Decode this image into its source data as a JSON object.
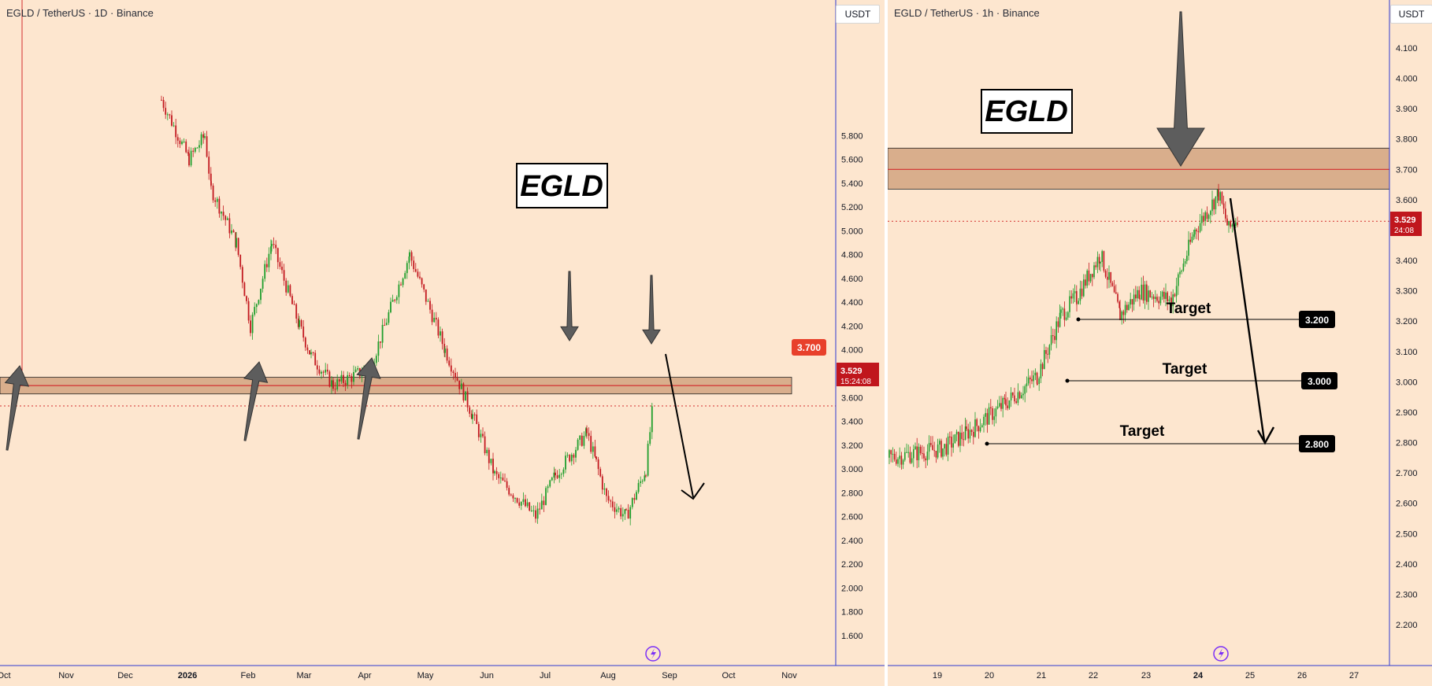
{
  "left_chart": {
    "symbol_label": "EGLD / TetherUS · 1D · Binance",
    "unit_label": "USDT",
    "watermark": "EGLD",
    "resistance_label": "3.700",
    "last_price": "3.529",
    "countdown": "15:24:08",
    "colors": {
      "zone": "#d9ae8c",
      "zone_line": "#d32f2f",
      "price_box": "#c0161d",
      "resistance_box": "#e8402b",
      "up": "#1f9e2c",
      "down": "#c2181f",
      "axis": "#2e3bd1"
    }
  },
  "right_chart": {
    "symbol_label": "EGLD / TetherUS · 1h · Binance",
    "unit_label": "USDT",
    "watermark": "EGLD",
    "last_price": "3.529",
    "countdown": "24:08",
    "targets": [
      {
        "label": "Target",
        "value": "3.200"
      },
      {
        "label": "Target",
        "value": "3.000"
      },
      {
        "label": "Target",
        "value": "2.800"
      }
    ]
  },
  "chart_data": [
    {
      "type": "candlestick",
      "title": "EGLD / TetherUS · 1D · Binance",
      "x_ticks": [
        "Oct",
        "Nov",
        "Dec",
        "2026",
        "Feb",
        "Mar",
        "Apr",
        "May",
        "Jun",
        "Jul",
        "Aug",
        "Sep",
        "Oct",
        "Nov"
      ],
      "y_ticks": [
        "5.800",
        "5.600",
        "5.400",
        "5.200",
        "5.000",
        "4.800",
        "4.600",
        "4.400",
        "4.200",
        "4.000",
        "3.800",
        "3.600",
        "3.400",
        "3.200",
        "3.000",
        "2.800",
        "2.600",
        "2.400",
        "2.200",
        "2.000",
        "1.800",
        "1.600"
      ],
      "ylim": [
        1.45,
        5.95
      ],
      "resistance_zone": [
        3.63,
        3.77
      ],
      "resistance_level": 3.7,
      "current_price": 3.529,
      "price_path": [
        [
          "Dec",
          6.1
        ],
        [
          "Dec",
          5.6
        ],
        [
          "2026",
          5.8
        ],
        [
          "2026",
          5.35
        ],
        [
          "Feb",
          4.9
        ],
        [
          "Feb",
          4.2
        ],
        [
          "Feb",
          4.9
        ],
        [
          "Mar",
          4.2
        ],
        [
          "Mar",
          3.95
        ],
        [
          "Apr",
          3.7
        ],
        [
          "Apr",
          3.85
        ],
        [
          "Apr",
          4.35
        ],
        [
          "May",
          4.8
        ],
        [
          "May",
          4.0
        ],
        [
          "Jun",
          3.45
        ],
        [
          "Jun",
          2.95
        ],
        [
          "Jun",
          2.6
        ],
        [
          "Jul",
          2.95
        ],
        [
          "Jul",
          3.3
        ],
        [
          "Jul",
          3.05
        ],
        [
          "Aug",
          2.75
        ],
        [
          "Aug",
          2.6
        ],
        [
          "Aug",
          3.0
        ],
        [
          "Aug",
          3.6
        ]
      ]
    },
    {
      "type": "candlestick",
      "title": "EGLD / TetherUS · 1h · Binance",
      "x_ticks": [
        "19",
        "20",
        "21",
        "22",
        "23",
        "24",
        "25",
        "26",
        "27"
      ],
      "y_ticks": [
        "4.100",
        "4.000",
        "3.900",
        "3.800",
        "3.700",
        "3.600",
        "3.500",
        "3.400",
        "3.300",
        "3.200",
        "3.100",
        "3.000",
        "2.900",
        "2.800",
        "2.700",
        "2.600",
        "2.500",
        "2.400",
        "2.300",
        "2.200"
      ],
      "ylim": [
        2.13,
        4.14
      ],
      "resistance_zone": [
        3.635,
        3.77
      ],
      "resistance_level": 3.7,
      "current_price": 3.529,
      "targets": [
        3.2,
        3.0,
        2.8
      ],
      "price_path": [
        [
          "19",
          2.75
        ],
        [
          "20",
          2.78
        ],
        [
          "20",
          2.83
        ],
        [
          "21",
          2.93
        ],
        [
          "21",
          3.02
        ],
        [
          "21",
          3.22
        ],
        [
          "22",
          3.28
        ],
        [
          "22",
          3.42
        ],
        [
          "22",
          3.22
        ],
        [
          "23",
          3.3
        ],
        [
          "23",
          3.27
        ],
        [
          "23",
          3.5
        ],
        [
          "24",
          3.62
        ],
        [
          "24",
          3.5
        ],
        [
          "24",
          3.55
        ]
      ]
    }
  ]
}
